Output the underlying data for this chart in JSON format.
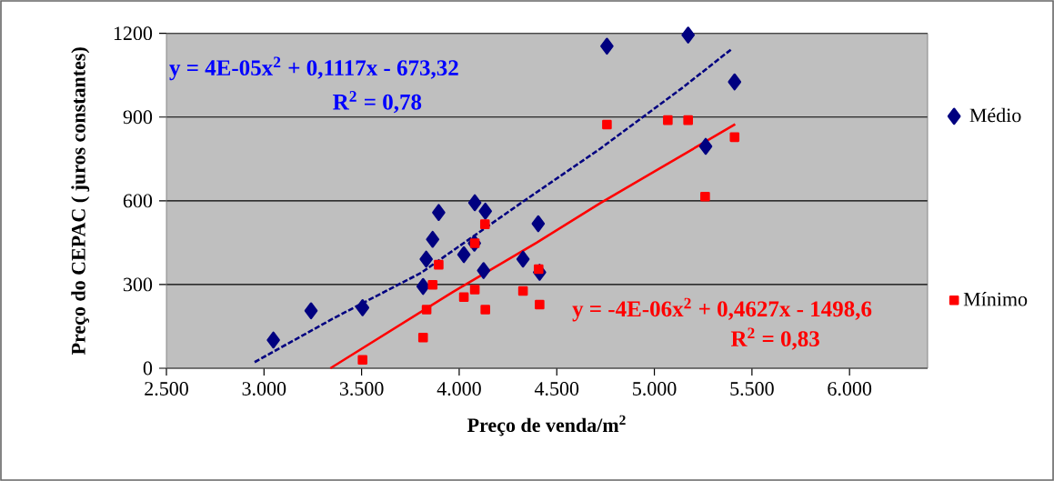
{
  "chart_data": {
    "type": "scatter",
    "xlabel": "Preço de venda/m$^{2}$",
    "ylabel": "Preço do CEPAC ( juros constantes)",
    "xlim": [
      2500,
      6400
    ],
    "ylim": [
      0,
      1200
    ],
    "xticks": [
      {
        "value": 2500,
        "label": "2.500"
      },
      {
        "value": 3000,
        "label": "3.000"
      },
      {
        "value": 3500,
        "label": "3.500"
      },
      {
        "value": 4000,
        "label": "4.000"
      },
      {
        "value": 4500,
        "label": "4.500"
      },
      {
        "value": 5000,
        "label": "5.000"
      },
      {
        "value": 5500,
        "label": "5.500"
      },
      {
        "value": 6000,
        "label": "6.000"
      }
    ],
    "yticks": [
      0,
      300,
      600,
      900,
      1200
    ],
    "grid": "y",
    "legend": "right",
    "annotations": [
      "y = 4E-05x$^{2}$ + 0,1117x - 673,32",
      "R$^{2}$ = 0,78",
      "y = -4E-06x$^{2}$ + 0,4627x - 1498,6",
      "R$^{2}$ = 0,83"
    ],
    "series": [
      {
        "name": "Médio",
        "marker": "diamond",
        "color": "#000080",
        "x": [
          3048,
          3241,
          3505,
          3815,
          3831,
          3864,
          3895,
          4024,
          4080,
          4078,
          4134,
          4125,
          4327,
          4405,
          4412,
          4757,
          5173,
          5411,
          5263
        ],
        "values": [
          101,
          206,
          217,
          293,
          391,
          462,
          558,
          407,
          593,
          448,
          563,
          350,
          391,
          518,
          344,
          1154,
          1194,
          1026,
          795
        ]
      },
      {
        "name": "Mínimo",
        "marker": "square",
        "color": "#ff0000",
        "x": [
          3505,
          3815,
          3833,
          3864,
          3895,
          4024,
          4080,
          4080,
          4132,
          4134,
          4327,
          4412,
          4407,
          4757,
          5069,
          5173,
          5260,
          5411
        ],
        "values": [
          30,
          110,
          210,
          299,
          371,
          255,
          282,
          448,
          516,
          210,
          277,
          228,
          355,
          873,
          889,
          889,
          615,
          828
        ]
      },
      {
        "type": "line",
        "marker": "none",
        "line_style": "dashed",
        "color": "#000080",
        "x": [
          2952,
          3356,
          3805,
          4327,
          4723,
          5142,
          5398
        ],
        "values": [
          22,
          179,
          342,
          597,
          787,
          1004,
          1145
        ]
      },
      {
        "type": "line",
        "marker": "none",
        "line_style": "solid",
        "color": "#ff0000",
        "x": [
          3340,
          3962,
          4397,
          4723,
          5002,
          5414
        ],
        "values": [
          0,
          271,
          450,
          592,
          706,
          874
        ]
      }
    ]
  }
}
